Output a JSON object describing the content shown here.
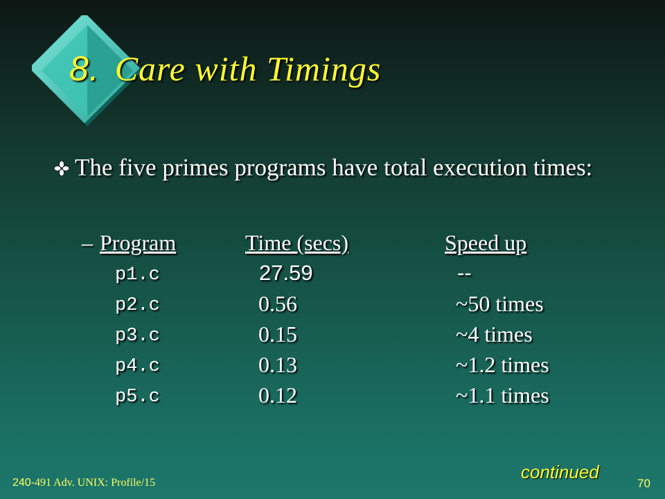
{
  "slide": {
    "title_number": "8.",
    "title_text": "Care with Timings",
    "bullet_text": "The five primes programs have total execution times:",
    "sub_dash": "–",
    "table": {
      "headers": [
        "Program",
        "Time (secs)",
        "Speed up"
      ],
      "rows": [
        {
          "program": "p1.c",
          "time": "27.59",
          "speedup": "--"
        },
        {
          "program": "p2.c",
          "time": "0.56",
          "speedup": "~50 times"
        },
        {
          "program": "p3.c",
          "time": "0.15",
          "speedup": "~4 times"
        },
        {
          "program": "p4.c",
          "time": "0.13",
          "speedup": "~1.2 times"
        },
        {
          "program": "p5.c",
          "time": "0.12",
          "speedup": "~1.1 times"
        }
      ]
    },
    "continued": "continued",
    "footer_course_number": "240-",
    "footer_course_rest": "491 Adv. UNIX: Profile/15",
    "page_number": "70"
  },
  "colors": {
    "title": "#ffff33",
    "text": "#ffffff",
    "footer": "#ffff66",
    "diamond_top": "#5ed6c8",
    "diamond_side": "#1f8f82"
  },
  "icons": {
    "logo": "diamond-logo-icon",
    "bullet": "four-petal-bullet-icon"
  }
}
